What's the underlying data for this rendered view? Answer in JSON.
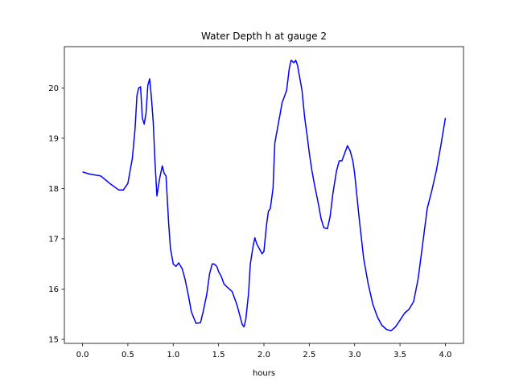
{
  "chart_data": {
    "type": "line",
    "title": "Water Depth h at gauge 2",
    "xlabel": "hours",
    "ylabel": "",
    "xlim": [
      -0.2,
      4.2
    ],
    "ylim": [
      14.92,
      20.82
    ],
    "xticks": [
      0.0,
      0.5,
      1.0,
      1.5,
      2.0,
      2.5,
      3.0,
      3.5,
      4.0
    ],
    "xtick_labels": [
      "0.0",
      "0.5",
      "1.0",
      "1.5",
      "2.0",
      "2.5",
      "3.0",
      "3.5",
      "4.0"
    ],
    "yticks": [
      15,
      16,
      17,
      18,
      19,
      20
    ],
    "ytick_labels": [
      "15",
      "16",
      "17",
      "18",
      "19",
      "20"
    ],
    "grid": false,
    "series": [
      {
        "color": "#0000ff",
        "x": [
          0.0,
          0.05,
          0.1,
          0.2,
          0.3,
          0.4,
          0.45,
          0.5,
          0.55,
          0.58,
          0.6,
          0.62,
          0.64,
          0.66,
          0.68,
          0.7,
          0.72,
          0.74,
          0.76,
          0.78,
          0.8,
          0.82,
          0.85,
          0.88,
          0.9,
          0.92,
          0.95,
          0.97,
          1.0,
          1.03,
          1.06,
          1.1,
          1.13,
          1.17,
          1.2,
          1.25,
          1.3,
          1.33,
          1.37,
          1.4,
          1.43,
          1.45,
          1.48,
          1.5,
          1.53,
          1.56,
          1.6,
          1.65,
          1.7,
          1.73,
          1.76,
          1.78,
          1.8,
          1.83,
          1.85,
          1.88,
          1.9,
          1.92,
          1.95,
          1.98,
          2.0,
          2.03,
          2.05,
          2.07,
          2.1,
          2.12,
          2.15,
          2.18,
          2.2,
          2.22,
          2.25,
          2.28,
          2.3,
          2.33,
          2.35,
          2.37,
          2.38,
          2.4,
          2.42,
          2.45,
          2.48,
          2.5,
          2.53,
          2.56,
          2.6,
          2.63,
          2.66,
          2.7,
          2.73,
          2.76,
          2.8,
          2.83,
          2.86,
          2.9,
          2.92,
          2.95,
          2.98,
          3.0,
          3.05,
          3.1,
          3.15,
          3.2,
          3.25,
          3.3,
          3.35,
          3.4,
          3.45,
          3.5,
          3.55,
          3.6,
          3.65,
          3.7,
          3.75,
          3.8,
          3.85,
          3.9,
          3.95,
          4.0
        ],
        "y": [
          18.33,
          18.3,
          18.28,
          18.25,
          18.1,
          17.97,
          17.97,
          18.1,
          18.6,
          19.2,
          19.85,
          20.0,
          20.02,
          19.4,
          19.28,
          19.5,
          20.05,
          20.18,
          19.8,
          19.3,
          18.5,
          17.85,
          18.2,
          18.45,
          18.3,
          18.25,
          17.3,
          16.8,
          16.5,
          16.45,
          16.52,
          16.4,
          16.2,
          15.85,
          15.55,
          15.32,
          15.33,
          15.55,
          15.9,
          16.3,
          16.5,
          16.5,
          16.45,
          16.35,
          16.25,
          16.1,
          16.03,
          15.95,
          15.7,
          15.5,
          15.3,
          15.25,
          15.4,
          15.9,
          16.5,
          16.85,
          17.02,
          16.9,
          16.8,
          16.7,
          16.75,
          17.3,
          17.55,
          17.6,
          18.0,
          18.9,
          19.2,
          19.5,
          19.7,
          19.8,
          19.95,
          20.4,
          20.55,
          20.5,
          20.55,
          20.45,
          20.35,
          20.15,
          19.95,
          19.4,
          19.0,
          18.7,
          18.35,
          18.05,
          17.7,
          17.4,
          17.22,
          17.2,
          17.45,
          17.9,
          18.35,
          18.55,
          18.55,
          18.75,
          18.85,
          18.75,
          18.55,
          18.3,
          17.4,
          16.6,
          16.1,
          15.7,
          15.45,
          15.28,
          15.2,
          15.17,
          15.25,
          15.38,
          15.52,
          15.6,
          15.75,
          16.2,
          16.9,
          17.6,
          17.95,
          18.35,
          18.85,
          19.4
        ]
      }
    ]
  }
}
